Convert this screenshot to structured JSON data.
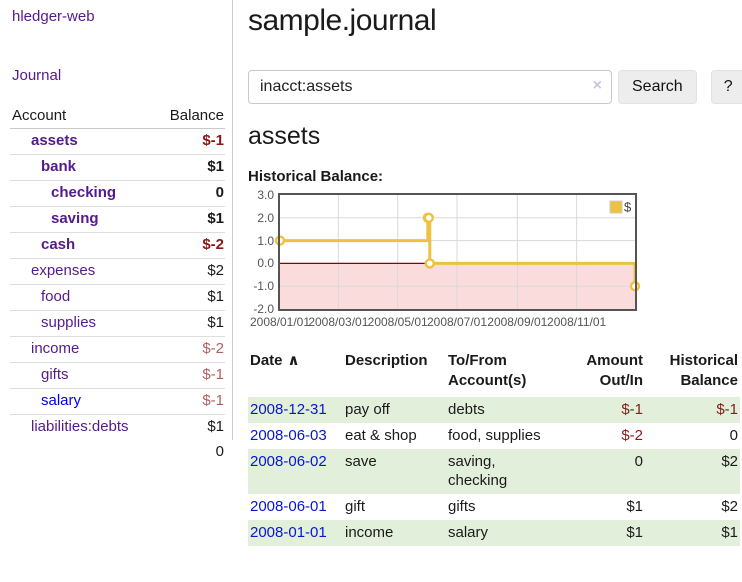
{
  "sidebar": {
    "app_title": "hledger-web",
    "nav": {
      "journal_label": "Journal"
    },
    "accounts_table": {
      "headers": {
        "account": "Account",
        "balance": "Balance"
      },
      "rows": [
        {
          "name": "assets",
          "balance": "$-1",
          "indent": 1,
          "bold": true,
          "name_color": "purple",
          "balance_style": "neg"
        },
        {
          "name": "bank",
          "balance": "$1",
          "indent": 2,
          "bold": true,
          "name_color": "purple",
          "balance_style": "plain"
        },
        {
          "name": "checking",
          "balance": "0",
          "indent": 3,
          "bold": true,
          "name_color": "purple",
          "balance_style": "plain"
        },
        {
          "name": "saving",
          "balance": "$1",
          "indent": 3,
          "bold": true,
          "name_color": "purple",
          "balance_style": "plain"
        },
        {
          "name": "cash",
          "balance": "$-2",
          "indent": 2,
          "bold": true,
          "name_color": "purple",
          "balance_style": "neg"
        },
        {
          "name": "expenses",
          "balance": "$2",
          "indent": 1,
          "bold": false,
          "name_color": "purple",
          "balance_style": "plain"
        },
        {
          "name": "food",
          "balance": "$1",
          "indent": 2,
          "bold": false,
          "name_color": "purple",
          "balance_style": "plain"
        },
        {
          "name": "supplies",
          "balance": "$1",
          "indent": 2,
          "bold": false,
          "name_color": "purple",
          "balance_style": "plain"
        },
        {
          "name": "income",
          "balance": "$-2",
          "indent": 1,
          "bold": false,
          "name_color": "purple",
          "balance_style": "neg-soft"
        },
        {
          "name": "gifts",
          "balance": "$-1",
          "indent": 2,
          "bold": false,
          "name_color": "purple",
          "balance_style": "neg-soft"
        },
        {
          "name": "salary",
          "balance": "$-1",
          "indent": 2,
          "bold": false,
          "name_color": "blue",
          "balance_style": "neg-soft"
        },
        {
          "name": "liabilities:debts",
          "balance": "$1",
          "indent": 1,
          "bold": false,
          "name_color": "purple",
          "balance_style": "plain"
        }
      ],
      "total": "0"
    }
  },
  "main": {
    "title": "sample.journal",
    "search": {
      "query": "inacct:assets",
      "clear_icon": "×",
      "button_label": "Search",
      "help_label": "?"
    },
    "account_heading": "assets",
    "chart_heading": "Historical Balance:"
  },
  "chart_data": {
    "type": "line",
    "title": "Historical Balance:",
    "step": true,
    "x_range": [
      "2008-01-01",
      "2008-12-31"
    ],
    "ylim": [
      -2,
      3
    ],
    "y_ticks": [
      {
        "v": 3,
        "label": "3.0"
      },
      {
        "v": 2,
        "label": "2.0"
      },
      {
        "v": 1,
        "label": "1.0"
      },
      {
        "v": 0,
        "label": "0.0"
      },
      {
        "v": -1,
        "label": "-1.0"
      },
      {
        "v": -2,
        "label": "-2.0"
      }
    ],
    "x_ticks": [
      {
        "date": "2008-01-01",
        "label": "2008/01/01"
      },
      {
        "date": "2008-03-01",
        "label": "2008/03/01"
      },
      {
        "date": "2008-05-01",
        "label": "2008/05/01"
      },
      {
        "date": "2008-07-01",
        "label": "2008/07/01"
      },
      {
        "date": "2008-09-01",
        "label": "2008/09/01"
      },
      {
        "date": "2008-11-01",
        "label": "2008/11/01"
      }
    ],
    "series": [
      {
        "name": "$",
        "color": "#edc240",
        "points": [
          [
            "2008-01-01",
            1
          ],
          [
            "2008-06-01",
            2
          ],
          [
            "2008-06-02",
            2
          ],
          [
            "2008-06-03",
            0
          ],
          [
            "2008-12-31",
            -1
          ]
        ]
      }
    ],
    "legend": {
      "label": "$",
      "position": "top-right",
      "swatch_color": "#edc240"
    },
    "colors": {
      "negative_region": "#fbdcdc",
      "zero_line": "#8b0000",
      "grid": "#d8d8d8",
      "border": "#545454"
    }
  },
  "transactions": {
    "headers": {
      "date": "Date",
      "sort_icon": "∧",
      "description": "Description",
      "accounts": "To/From Account(s)",
      "amount": "Amount Out/In",
      "balance": "Historical Balance"
    },
    "rows": [
      {
        "date": "2008-12-31",
        "description": "pay off",
        "accounts": "debts",
        "amount": "$-1",
        "balance": "$-1"
      },
      {
        "date": "2008-06-03",
        "description": "eat & shop",
        "accounts": "food, supplies",
        "amount": "$-2",
        "balance": "0"
      },
      {
        "date": "2008-06-02",
        "description": "save",
        "accounts": "saving, checking",
        "amount": "0",
        "balance": "$2"
      },
      {
        "date": "2008-06-01",
        "description": "gift",
        "accounts": "gifts",
        "amount": "$1",
        "balance": "$2"
      },
      {
        "date": "2008-01-01",
        "description": "income",
        "accounts": "salary",
        "amount": "$1",
        "balance": "$1"
      }
    ]
  }
}
